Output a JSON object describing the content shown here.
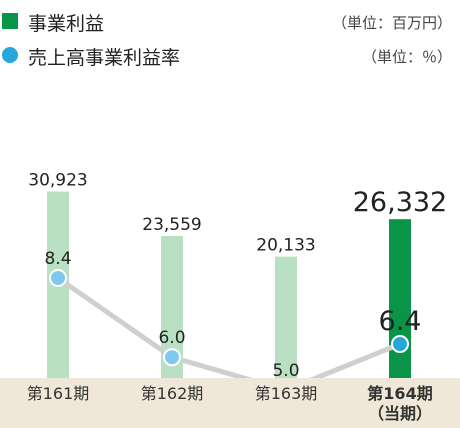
{
  "legend": {
    "profit_label": "事業利益",
    "profit_unit": "（単位：百万円）",
    "rate_label": "売上高事業利益率",
    "rate_unit": "（単位：％）"
  },
  "colors": {
    "bar_past": "#b9e0c3",
    "bar_current": "#0a9447",
    "line": "#cfcfcf",
    "dot": "#7fc8ee",
    "dot_current": "#25a7dc",
    "band": "#efe8d8"
  },
  "chart_data": {
    "type": "bar",
    "categories": [
      "第161期",
      "第162期",
      "第163期",
      "第164期\n（当期）"
    ],
    "series": [
      {
        "name": "事業利益",
        "values": [
          30923,
          23559,
          20133,
          26332
        ],
        "labels": [
          "30,923",
          "23,559",
          "20,133",
          "26,332"
        ]
      },
      {
        "name": "売上高事業利益率",
        "type": "line",
        "values": [
          8.4,
          6.0,
          5.0,
          6.4
        ],
        "labels": [
          "8.4",
          "6.0",
          "5.0",
          "6.4"
        ]
      }
    ],
    "highlight_index": 3
  }
}
